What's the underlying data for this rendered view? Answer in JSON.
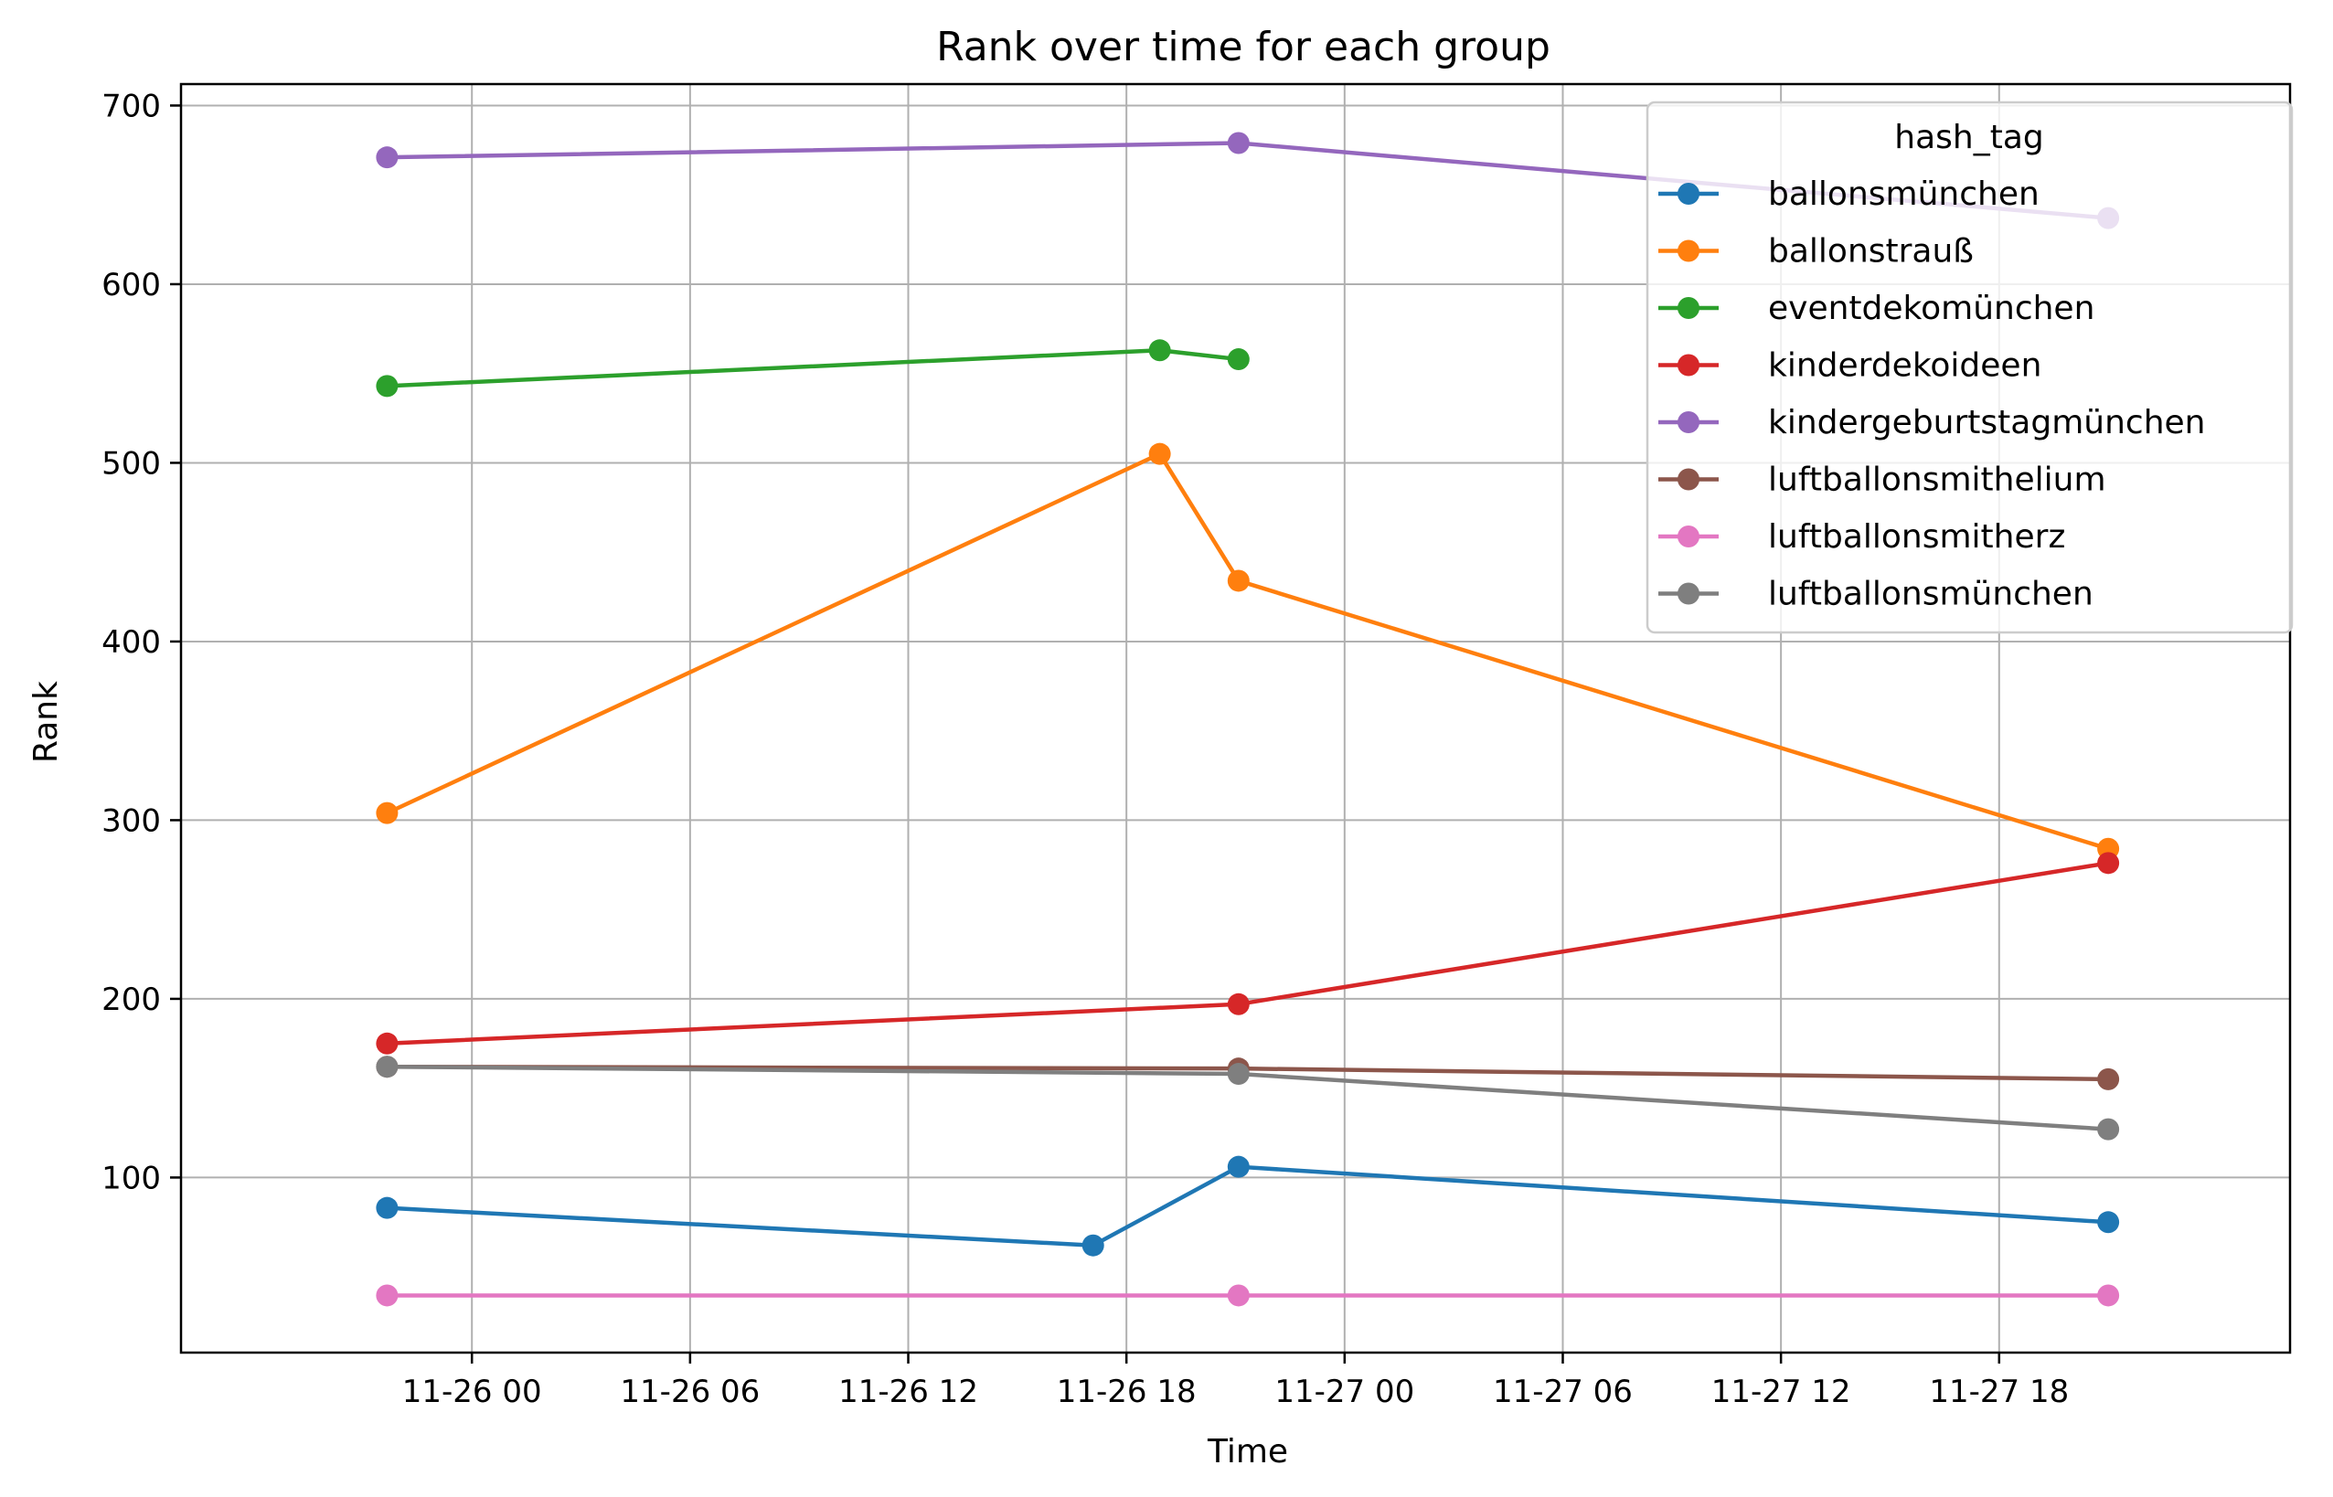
{
  "chart_data": {
    "type": "line",
    "title": "Rank over time for each group",
    "xlabel": "Time",
    "ylabel": "Rank",
    "x_range": [
      "2025-11-25 16:00",
      "2025-11-28 02:00"
    ],
    "ylim": [
      2,
      712
    ],
    "x_ticks": [
      {
        "label": "11-26 00",
        "time": "2025-11-26 00:00"
      },
      {
        "label": "11-26 06",
        "time": "2025-11-26 06:00"
      },
      {
        "label": "11-26 12",
        "time": "2025-11-26 12:00"
      },
      {
        "label": "11-26 18",
        "time": "2025-11-26 18:00"
      },
      {
        "label": "11-27 00",
        "time": "2025-11-27 00:00"
      },
      {
        "label": "11-27 06",
        "time": "2025-11-27 06:00"
      },
      {
        "label": "11-27 12",
        "time": "2025-11-27 12:00"
      },
      {
        "label": "11-27 18",
        "time": "2025-11-27 18:00"
      }
    ],
    "y_ticks": [
      100,
      200,
      300,
      400,
      500,
      600,
      700
    ],
    "grid": true,
    "legend": {
      "title": "hash_tag",
      "position": "top-right"
    },
    "series": [
      {
        "name": "ballonsmünchen",
        "color": "#1f77b4",
        "points": [
          [
            "2025-11-25 21:40",
            83
          ],
          [
            "2025-11-26 17:05",
            62
          ],
          [
            "2025-11-26 21:05",
            106
          ],
          [
            "2025-11-27 21:00",
            75
          ]
        ]
      },
      {
        "name": "ballonstrauß",
        "color": "#ff7f0e",
        "points": [
          [
            "2025-11-25 21:40",
            304
          ],
          [
            "2025-11-26 18:55",
            505
          ],
          [
            "2025-11-26 21:05",
            434
          ],
          [
            "2025-11-27 21:00",
            284
          ]
        ]
      },
      {
        "name": "eventdekomünchen",
        "color": "#2ca02c",
        "points": [
          [
            "2025-11-25 21:40",
            543
          ],
          [
            "2025-11-26 18:55",
            563
          ],
          [
            "2025-11-26 21:05",
            558
          ]
        ]
      },
      {
        "name": "kinderdekoideen",
        "color": "#d62728",
        "points": [
          [
            "2025-11-25 21:40",
            175
          ],
          [
            "2025-11-26 21:05",
            197
          ],
          [
            "2025-11-27 21:00",
            276
          ]
        ]
      },
      {
        "name": "kindergeburtstagmünchen",
        "color": "#9467bd",
        "points": [
          [
            "2025-11-25 21:40",
            671
          ],
          [
            "2025-11-26 21:05",
            679
          ],
          [
            "2025-11-27 21:00",
            637
          ]
        ]
      },
      {
        "name": "luftballonsmithelium",
        "color": "#8c564b",
        "points": [
          [
            "2025-11-25 21:40",
            162
          ],
          [
            "2025-11-26 21:05",
            161
          ],
          [
            "2025-11-27 21:00",
            155
          ]
        ]
      },
      {
        "name": "luftballonsmitherz",
        "color": "#e377c2",
        "points": [
          [
            "2025-11-25 21:40",
            34
          ],
          [
            "2025-11-26 21:05",
            34
          ],
          [
            "2025-11-27 21:00",
            34
          ]
        ]
      },
      {
        "name": "luftballonsmünchen",
        "color": "#7f7f7f",
        "points": [
          [
            "2025-11-25 21:40",
            162
          ],
          [
            "2025-11-26 21:05",
            158
          ],
          [
            "2025-11-27 21:00",
            127
          ]
        ]
      }
    ]
  }
}
